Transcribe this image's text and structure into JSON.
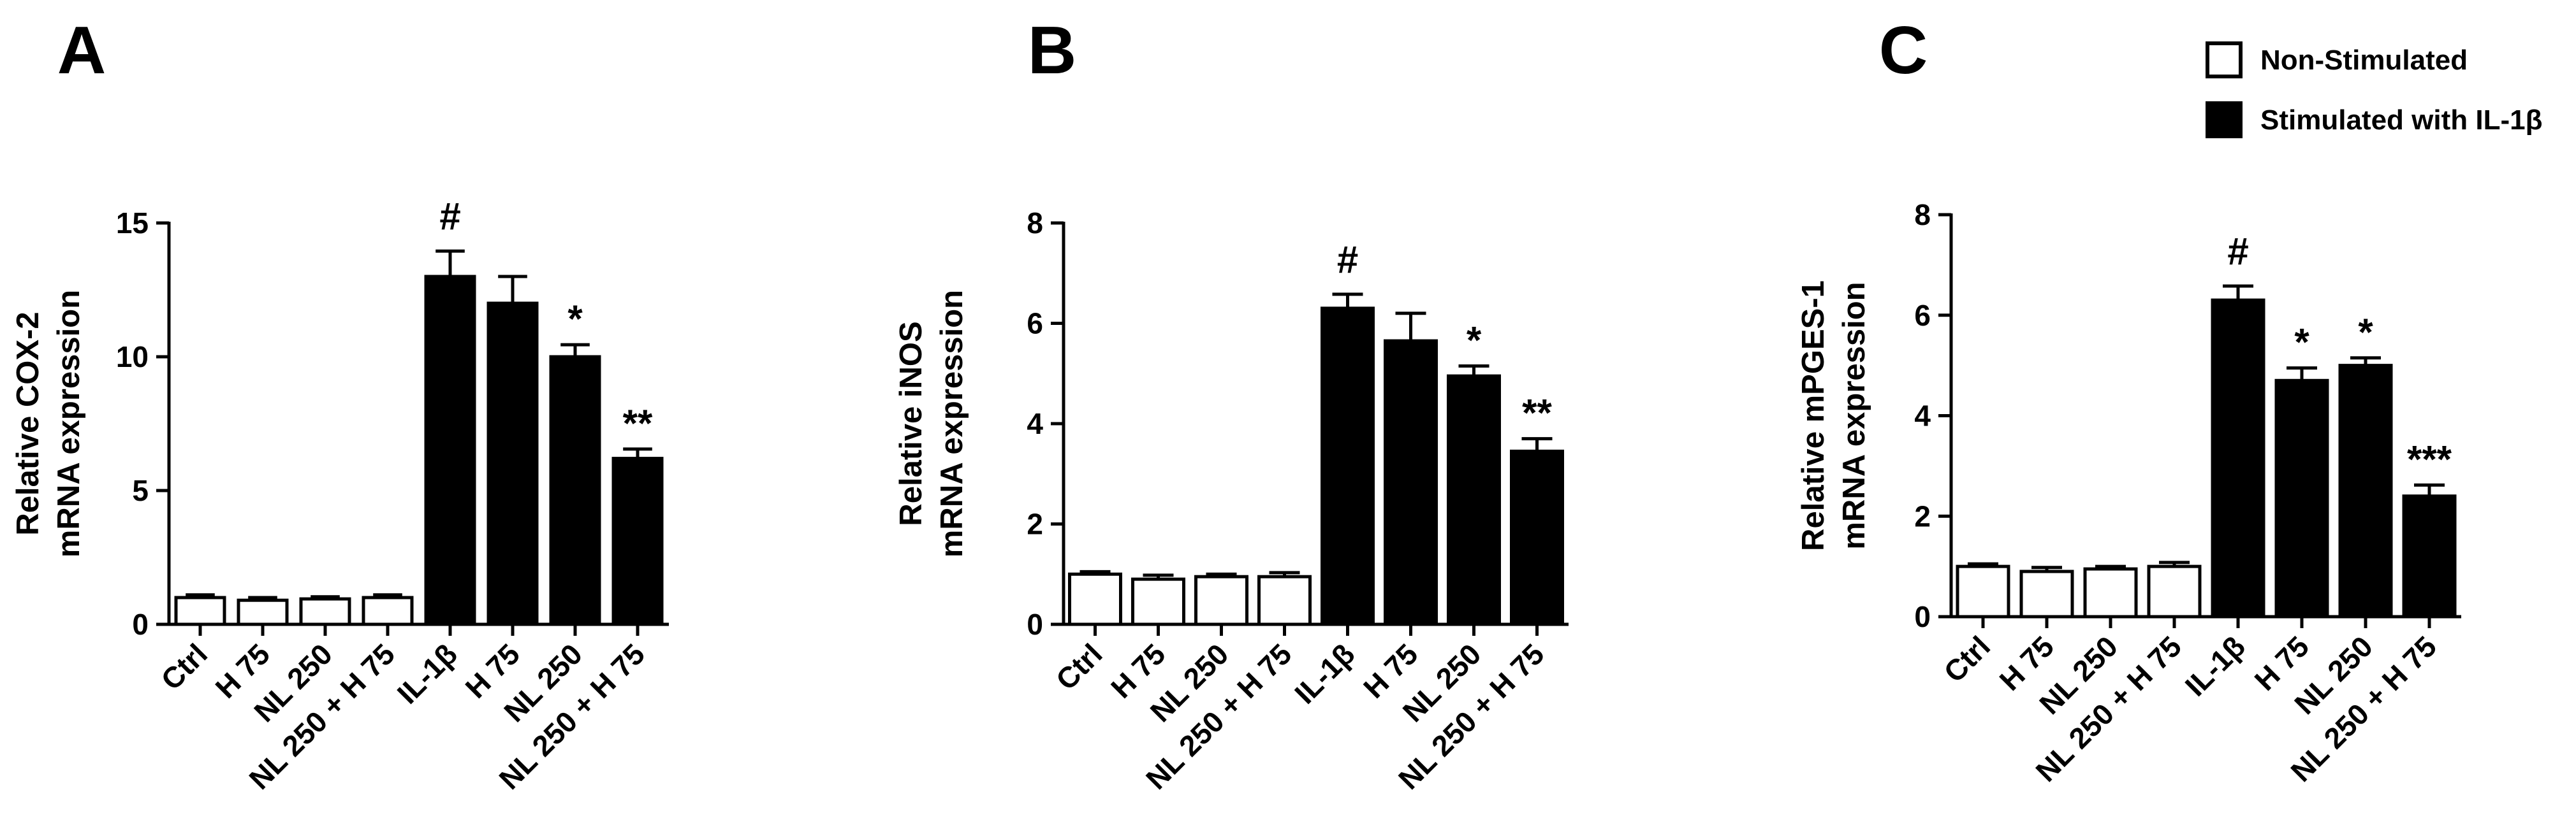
{
  "legend": {
    "items": [
      {
        "label": "Non-Stimulated",
        "fill": "#ffffff"
      },
      {
        "label": "Stimulated with IL-1β",
        "fill": "#000000"
      }
    ]
  },
  "chart_data": [
    {
      "panel": "A",
      "type": "bar",
      "ylabel": [
        "Relative COX-2",
        "mRNA expression"
      ],
      "ylim": [
        0,
        15
      ],
      "yticks": [
        0,
        5,
        10,
        15
      ],
      "categories": [
        "Ctrl",
        "H 75",
        "NL 250",
        "NL 250 + H 75",
        "IL-1β",
        "H 75",
        "NL 250",
        "NL 250 + H 75"
      ],
      "values": [
        1.0,
        0.9,
        0.95,
        1.0,
        13.0,
        12.0,
        10.0,
        6.2
      ],
      "errors": [
        0.1,
        0.1,
        0.08,
        0.1,
        0.95,
        1.0,
        0.45,
        0.35
      ],
      "stimulated": [
        false,
        false,
        false,
        false,
        true,
        true,
        true,
        true
      ],
      "annotations": [
        "",
        "",
        "",
        "",
        "#",
        "",
        "*",
        "**"
      ]
    },
    {
      "panel": "B",
      "type": "bar",
      "ylabel": [
        "Relative iNOS",
        "mRNA expression"
      ],
      "ylim": [
        0,
        8
      ],
      "yticks": [
        0,
        2,
        4,
        6,
        8
      ],
      "categories": [
        "Ctrl",
        "H 75",
        "NL 250",
        "NL 250 + H 75",
        "IL-1β",
        "H 75",
        "NL 250",
        "NL 250 + H 75"
      ],
      "values": [
        1.0,
        0.9,
        0.95,
        0.95,
        6.3,
        5.65,
        4.95,
        3.45
      ],
      "errors": [
        0.05,
        0.08,
        0.05,
        0.08,
        0.28,
        0.55,
        0.2,
        0.25
      ],
      "stimulated": [
        false,
        false,
        false,
        false,
        true,
        true,
        true,
        true
      ],
      "annotations": [
        "",
        "",
        "",
        "",
        "#",
        "",
        "*",
        "**"
      ]
    },
    {
      "panel": "C",
      "type": "bar",
      "ylabel": [
        "Relative mPGES-1",
        "mRNA expression"
      ],
      "ylim": [
        0,
        8
      ],
      "yticks": [
        0,
        2,
        4,
        6,
        8
      ],
      "categories": [
        "Ctrl",
        "H 75",
        "NL 250",
        "NL 250 + H 75",
        "IL-1β",
        "H 75",
        "NL 250",
        "NL 250 + H 75"
      ],
      "values": [
        1.0,
        0.9,
        0.95,
        1.0,
        6.3,
        4.7,
        5.0,
        2.4
      ],
      "errors": [
        0.05,
        0.08,
        0.05,
        0.08,
        0.28,
        0.25,
        0.15,
        0.22
      ],
      "stimulated": [
        false,
        false,
        false,
        false,
        true,
        true,
        true,
        true
      ],
      "annotations": [
        "",
        "",
        "",
        "",
        "#",
        "*",
        "*",
        "***"
      ]
    }
  ]
}
